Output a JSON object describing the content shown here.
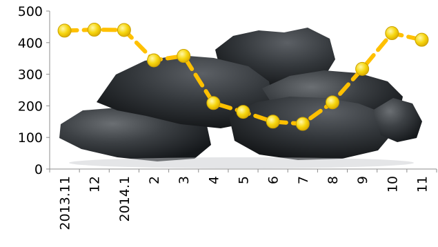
{
  "chart_data": {
    "type": "line",
    "categories": [
      "2013.11",
      "12",
      "2014.1",
      "2",
      "3",
      "4",
      "5",
      "6",
      "7",
      "8",
      "9",
      "10",
      "11"
    ],
    "series": [
      {
        "values": [
          438,
          441,
          440,
          344,
          358,
          209,
          181,
          150,
          143,
          211,
          317,
          430,
          409
        ],
        "color": "#FFC000",
        "marker_color": "#F5D313",
        "line_style": "dashed",
        "marker": "circle"
      }
    ],
    "xlabel": "",
    "ylabel": "",
    "ylim": [
      0,
      500
    ],
    "yticks": [
      0,
      100,
      200,
      300,
      400,
      500
    ],
    "grid": false,
    "legend": "none",
    "background_image": "coal-lumps-photo"
  }
}
